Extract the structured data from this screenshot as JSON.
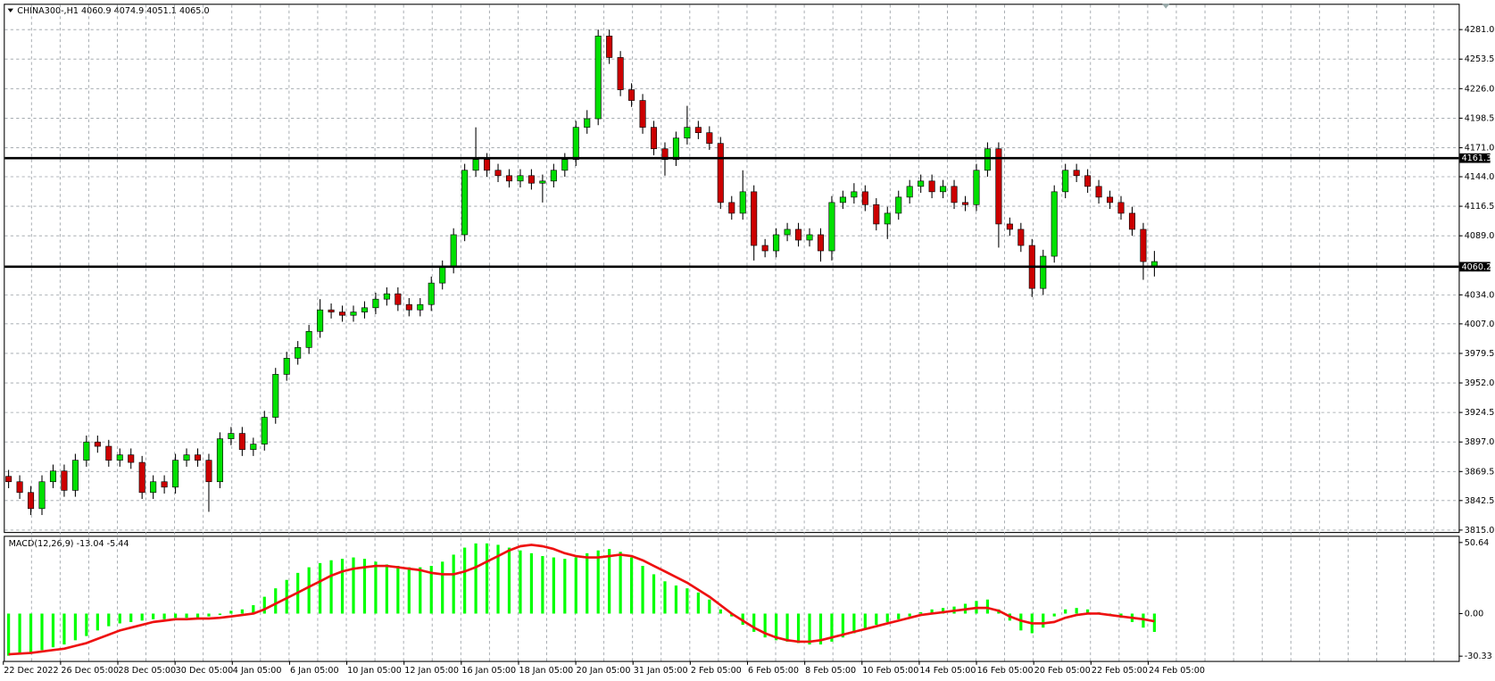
{
  "chart_data": [
    {
      "type": "candlestick",
      "title": "CHINA300-,H1  4060.9 4074.9 4051.1 4065.0",
      "open": [
        3865,
        3860,
        3850,
        3835,
        3860,
        3870,
        3852,
        3880,
        3897,
        3893,
        3880,
        3885,
        3878,
        3850,
        3860,
        3855,
        3880,
        3885,
        3880,
        3860,
        3900,
        3905,
        3890,
        3895,
        3920,
        3960,
        3975,
        3985,
        4000,
        4020,
        4018,
        4015,
        4018,
        4022,
        4030,
        4035,
        4025,
        4020,
        4025,
        4045,
        4060,
        4090,
        4150,
        4160,
        4150,
        4145,
        4140,
        4145,
        4138,
        4140,
        4150,
        4160,
        4190,
        4198,
        4275,
        4255,
        4225,
        4215,
        4190,
        4170,
        4160,
        4180,
        4190,
        4185,
        4175,
        4120,
        4110,
        4130,
        4080,
        4075,
        4090,
        4095,
        4085,
        4090,
        4075,
        4120,
        4125,
        4130,
        4118,
        4100,
        4110,
        4125,
        4135,
        4140,
        4130,
        4135,
        4120,
        4118,
        4150,
        4170,
        4100,
        4095,
        4080,
        4040,
        4070,
        4130,
        4150,
        4145,
        4135,
        4125,
        4120,
        4110,
        4095,
        4060.9
      ],
      "high": [
        3871,
        3866,
        3856,
        3866,
        3876,
        3876,
        3886,
        3903,
        3903,
        3899,
        3891,
        3891,
        3884,
        3866,
        3866,
        3886,
        3891,
        3891,
        3886,
        3906,
        3911,
        3911,
        3901,
        3926,
        3966,
        3981,
        3991,
        4006,
        4030,
        4026,
        4024,
        4024,
        4028,
        4036,
        4041,
        4041,
        4031,
        4031,
        4051,
        4066,
        4096,
        4156,
        4190,
        4166,
        4156,
        4151,
        4151,
        4151,
        4146,
        4156,
        4166,
        4196,
        4206,
        4281,
        4281,
        4261,
        4231,
        4221,
        4196,
        4176,
        4186,
        4210,
        4196,
        4191,
        4181,
        4126,
        4150,
        4136,
        4086,
        4096,
        4101,
        4101,
        4096,
        4096,
        4126,
        4131,
        4138,
        4136,
        4124,
        4116,
        4131,
        4141,
        4146,
        4146,
        4141,
        4141,
        4126,
        4156,
        4176,
        4176,
        4106,
        4101,
        4086,
        4076,
        4136,
        4156,
        4156,
        4151,
        4141,
        4131,
        4126,
        4116,
        4101,
        4074.9
      ],
      "low": [
        3854,
        3844,
        3829,
        3829,
        3854,
        3846,
        3846,
        3874,
        3887,
        3874,
        3874,
        3872,
        3844,
        3844,
        3849,
        3849,
        3874,
        3874,
        3832,
        3854,
        3894,
        3884,
        3884,
        3889,
        3914,
        3954,
        3969,
        3979,
        3994,
        4012,
        4009,
        4009,
        4012,
        4016,
        4024,
        4019,
        4014,
        4014,
        4019,
        4039,
        4054,
        4084,
        4144,
        4144,
        4139,
        4134,
        4134,
        4132,
        4120,
        4134,
        4144,
        4154,
        4184,
        4192,
        4249,
        4219,
        4209,
        4184,
        4164,
        4145,
        4154,
        4174,
        4179,
        4169,
        4114,
        4104,
        4104,
        4066,
        4069,
        4069,
        4084,
        4079,
        4079,
        4065,
        4066,
        4114,
        4119,
        4112,
        4094,
        4086,
        4104,
        4119,
        4129,
        4124,
        4124,
        4114,
        4112,
        4112,
        4144,
        4078,
        4089,
        4074,
        4032,
        4034,
        4064,
        4124,
        4139,
        4129,
        4119,
        4114,
        4104,
        4089,
        4048,
        4051.1
      ],
      "close": [
        3860,
        3850,
        3835,
        3860,
        3870,
        3852,
        3880,
        3897,
        3893,
        3880,
        3885,
        3878,
        3850,
        3860,
        3855,
        3880,
        3885,
        3880,
        3860,
        3900,
        3905,
        3890,
        3895,
        3920,
        3960,
        3975,
        3985,
        4000,
        4020,
        4018,
        4015,
        4018,
        4022,
        4030,
        4035,
        4025,
        4020,
        4025,
        4045,
        4060,
        4090,
        4150,
        4160,
        4150,
        4145,
        4140,
        4145,
        4138,
        4140,
        4150,
        4160,
        4190,
        4198,
        4275,
        4255,
        4225,
        4215,
        4190,
        4170,
        4160,
        4180,
        4190,
        4185,
        4175,
        4120,
        4110,
        4130,
        4080,
        4075,
        4090,
        4095,
        4085,
        4090,
        4075,
        4120,
        4125,
        4130,
        4118,
        4100,
        4110,
        4125,
        4135,
        4140,
        4130,
        4135,
        4120,
        4118,
        4150,
        4170,
        4100,
        4095,
        4080,
        4040,
        4070,
        4130,
        4150,
        4145,
        4135,
        4125,
        4120,
        4110,
        4095,
        4065,
        4065
      ],
      "up_color": "#00e000",
      "down_color": "#cc0000",
      "ylim": [
        3813.2,
        4304.1
      ],
      "yticks": [
        {
          "value": 4281,
          "label": "4281.0"
        },
        {
          "value": 4253.5,
          "label": "4253.5"
        },
        {
          "value": 4226,
          "label": "4226.0"
        },
        {
          "value": 4198.5,
          "label": "4198.5"
        },
        {
          "value": 4171,
          "label": "4171.0"
        },
        {
          "value": 4144,
          "label": "4144.0"
        },
        {
          "value": 4116.5,
          "label": "4116.5"
        },
        {
          "value": 4089,
          "label": "4089.0"
        },
        {
          "value": 4034,
          "label": "4034.0"
        },
        {
          "value": 4007,
          "label": "4007.0"
        },
        {
          "value": 3979.5,
          "label": "3979.5"
        },
        {
          "value": 3952,
          "label": "3952.0"
        },
        {
          "value": 3924.5,
          "label": "3924.5"
        },
        {
          "value": 3897,
          "label": "3897.0"
        },
        {
          "value": 3869.5,
          "label": "3869.5"
        },
        {
          "value": 3842.5,
          "label": "3842.5"
        },
        {
          "value": 3815,
          "label": "3815.0"
        }
      ],
      "levels": [
        4161.3,
        4060.2
      ],
      "x_labels": [
        "22 Dec 2022",
        "26 Dec 05:00",
        "28 Dec 05:00",
        "30 Dec 05:00",
        "4 Jan 05:00",
        "6 Jan 05:00",
        "10 Jan 05:00",
        "12 Jan 05:00",
        "16 Jan 05:00",
        "18 Jan 05:00",
        "20 Jan 05:00",
        "31 Jan 05:00",
        "2 Feb 05:00",
        "6 Feb 05:00",
        "8 Feb 05:00",
        "10 Feb 05:00",
        "14 Feb 05:00",
        "16 Feb 05:00",
        "20 Feb 05:00",
        "22 Feb 05:00",
        "24 Feb 05:00"
      ],
      "grid": true
    },
    {
      "type": "macd",
      "title": "MACD(12,26,9) -13.04 -5.44",
      "histogram": [
        -30,
        -29,
        -28,
        -26,
        -24,
        -22,
        -19,
        -16,
        -12,
        -9,
        -7,
        -6,
        -5,
        -4,
        -4,
        -3,
        -3,
        -3,
        -2,
        -1,
        2,
        3,
        6,
        12,
        18,
        24,
        29,
        33,
        36,
        38,
        39,
        40,
        39,
        37,
        35,
        34,
        33,
        33,
        34,
        37,
        42,
        47,
        50,
        50,
        49,
        47,
        45,
        43,
        41,
        40,
        39,
        40,
        43,
        45,
        46,
        44,
        40,
        34,
        28,
        23,
        20,
        18,
        15,
        10,
        3,
        -2,
        -8,
        -13,
        -17,
        -19,
        -20,
        -21,
        -22,
        -22,
        -20,
        -17,
        -14,
        -11,
        -8,
        -6,
        -4,
        -2,
        1,
        3,
        4,
        5,
        7,
        9,
        10,
        3,
        -5,
        -12,
        -14,
        -10,
        -2,
        3,
        4,
        3,
        1,
        0,
        -3,
        -6,
        -10,
        -13.04
      ],
      "signal": [
        -29,
        -28.5,
        -28,
        -27,
        -26,
        -25,
        -23,
        -21,
        -18,
        -15,
        -12,
        -10,
        -8,
        -6,
        -5,
        -4,
        -4,
        -3.5,
        -3.5,
        -3,
        -2,
        -1,
        0,
        3,
        7,
        11,
        15,
        19,
        23,
        27,
        30,
        32,
        33,
        34,
        34,
        33,
        32,
        31,
        29,
        28,
        28,
        30,
        33,
        37,
        41,
        45,
        48,
        49,
        48,
        46,
        43,
        41,
        40,
        40,
        41,
        42,
        41,
        38,
        34,
        30,
        26,
        22,
        17,
        12,
        6,
        0,
        -5,
        -10,
        -14,
        -17,
        -19,
        -20,
        -20,
        -19,
        -17,
        -15,
        -13,
        -11,
        -9,
        -7,
        -5,
        -3,
        -1,
        0,
        1,
        2,
        3,
        4,
        4,
        2,
        -2,
        -5,
        -7,
        -7,
        -6,
        -3,
        -1,
        0,
        0,
        -1,
        -2,
        -3,
        -4,
        -5.44
      ],
      "hist_color": "#00ff00",
      "signal_color": "#ee1111",
      "ylim": [
        -30.33,
        50.64
      ],
      "yticks": [
        50.64,
        {
          "value": 0,
          "label": "0.00"
        },
        -30.33
      ]
    }
  ]
}
